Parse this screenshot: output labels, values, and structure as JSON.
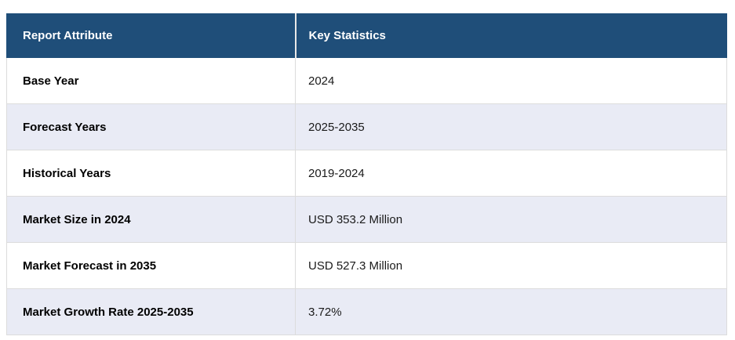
{
  "table": {
    "header": {
      "attribute_label": "Report Attribute",
      "value_label": "Key Statistics"
    },
    "rows": [
      {
        "attribute": "Base Year",
        "value": "2024"
      },
      {
        "attribute": "Forecast Years",
        "value": "2025-2035"
      },
      {
        "attribute": "Historical Years",
        "value": "2019-2024"
      },
      {
        "attribute": "Market Size in 2024",
        "value": "USD 353.2 Million"
      },
      {
        "attribute": "Market Forecast in 2035",
        "value": "USD 527.3 Million"
      },
      {
        "attribute": "Market Growth Rate 2025-2035",
        "value": "3.72%"
      }
    ],
    "colors": {
      "header_bg": "#1f4e79",
      "header_text": "#ffffff",
      "stripe_bg": "#e9ebf5",
      "row_bg": "#ffffff",
      "border": "#dcdcdc"
    }
  },
  "chart_data": {
    "type": "table",
    "title": "",
    "columns": [
      "Report Attribute",
      "Key Statistics"
    ],
    "rows": [
      [
        "Base Year",
        "2024"
      ],
      [
        "Forecast Years",
        "2025-2035"
      ],
      [
        "Historical Years",
        "2019-2024"
      ],
      [
        "Market Size in 2024",
        "USD 353.2 Million"
      ],
      [
        "Market Forecast in 2035",
        "USD 527.3 Million"
      ],
      [
        "Market Growth Rate 2025-2035",
        "3.72%"
      ]
    ]
  }
}
